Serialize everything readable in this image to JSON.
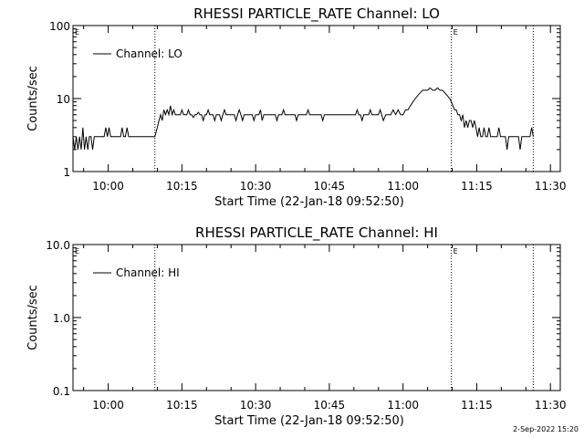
{
  "footer": {
    "date_stamp": "2-Sep-2022 15:20"
  },
  "chart_data": [
    {
      "type": "line",
      "title": "RHESSI PARTICLE_RATE Channel: LO",
      "xlabel": "Start Time (22-Jan-18 09:52:50)",
      "ylabel": "Counts/sec",
      "yscale": "log",
      "xlim": [
        "09:52:50",
        "11:32:00"
      ],
      "ylim": [
        1,
        100
      ],
      "x_ticks": [
        "10:00",
        "10:15",
        "10:30",
        "10:45",
        "11:00",
        "11:15",
        "11:30"
      ],
      "y_ticks": [
        "1",
        "10",
        "100"
      ],
      "legend": {
        "entries": [
          "Channel: LO"
        ],
        "placement": "top-left"
      },
      "event_lines": [
        "10:09:30",
        "11:09:50",
        "11:26:30"
      ],
      "event_markers": [
        {
          "at": "09:52:50",
          "label": "E"
        },
        {
          "at": "11:09:50",
          "label": "E"
        }
      ],
      "series": [
        {
          "name": "Channel: LO",
          "x": [
            "09:52:50",
            "09:53:10",
            "09:53:30",
            "09:53:50",
            "09:54:10",
            "09:54:30",
            "09:54:50",
            "09:55:10",
            "09:55:30",
            "09:55:50",
            "09:56:10",
            "09:56:30",
            "09:56:50",
            "09:57:10",
            "09:57:30",
            "09:57:50",
            "09:58:10",
            "09:58:30",
            "09:58:50",
            "09:59:10",
            "09:59:30",
            "09:59:50",
            "10:00:10",
            "10:00:30",
            "10:00:50",
            "10:01:10",
            "10:01:30",
            "10:01:50",
            "10:02:10",
            "10:02:30",
            "10:02:50",
            "10:03:10",
            "10:03:30",
            "10:03:50",
            "10:04:10",
            "10:05:00",
            "10:06:00",
            "10:07:00",
            "10:08:00",
            "10:09:30",
            "10:10:00",
            "10:10:20",
            "10:10:40",
            "10:11:00",
            "10:11:20",
            "10:11:40",
            "10:12:00",
            "10:12:20",
            "10:12:40",
            "10:13:00",
            "10:13:20",
            "10:13:40",
            "10:14:00",
            "10:14:20",
            "10:14:40",
            "10:15:00",
            "10:15:20",
            "10:15:40",
            "10:16:00",
            "10:16:20",
            "10:16:40",
            "10:17:00",
            "10:17:20",
            "10:17:40",
            "10:18:00",
            "10:18:20",
            "10:18:40",
            "10:19:00",
            "10:19:20",
            "10:19:40",
            "10:20:00",
            "10:20:20",
            "10:20:40",
            "10:21:00",
            "10:21:20",
            "10:21:40",
            "10:22:00",
            "10:22:20",
            "10:22:40",
            "10:23:00",
            "10:23:20",
            "10:23:40",
            "10:24:00",
            "10:24:20",
            "10:24:40",
            "10:25:00",
            "10:25:20",
            "10:25:40",
            "10:26:00",
            "10:26:20",
            "10:26:40",
            "10:27:00",
            "10:27:20",
            "10:27:40",
            "10:28:00",
            "10:28:20",
            "10:28:40",
            "10:29:00",
            "10:29:20",
            "10:29:40",
            "10:30:00",
            "10:30:20",
            "10:30:40",
            "10:31:00",
            "10:31:20",
            "10:31:40",
            "10:32:00",
            "10:32:20",
            "10:32:40",
            "10:33:00",
            "10:33:20",
            "10:33:40",
            "10:34:00",
            "10:34:20",
            "10:34:40",
            "10:35:00",
            "10:35:20",
            "10:35:40",
            "10:36:00",
            "10:36:20",
            "10:36:40",
            "10:37:00",
            "10:37:20",
            "10:37:40",
            "10:38:00",
            "10:38:20",
            "10:38:40",
            "10:39:00",
            "10:39:20",
            "10:39:40",
            "10:40:00",
            "10:40:20",
            "10:40:40",
            "10:41:00",
            "10:41:20",
            "10:41:40",
            "10:42:00",
            "10:42:20",
            "10:42:40",
            "10:43:00",
            "10:43:20",
            "10:43:40",
            "10:44:00",
            "10:44:20",
            "10:44:40",
            "10:45:00",
            "10:45:20",
            "10:45:40",
            "10:46:00",
            "10:46:20",
            "10:46:40",
            "10:47:00",
            "10:47:20",
            "10:47:40",
            "10:48:00",
            "10:48:20",
            "10:48:40",
            "10:49:00",
            "10:49:20",
            "10:49:40",
            "10:50:00",
            "10:50:20",
            "10:50:40",
            "10:51:00",
            "10:51:20",
            "10:51:40",
            "10:52:00",
            "10:52:20",
            "10:52:40",
            "10:53:00",
            "10:53:20",
            "10:53:40",
            "10:54:00",
            "10:54:20",
            "10:54:40",
            "10:55:00",
            "10:55:20",
            "10:55:40",
            "10:56:00",
            "10:56:30",
            "10:57:00",
            "10:57:30",
            "10:58:00",
            "10:58:30",
            "10:59:00",
            "10:59:30",
            "11:00:00",
            "11:00:30",
            "11:01:00",
            "11:01:30",
            "11:02:00",
            "11:02:30",
            "11:03:00",
            "11:03:30",
            "11:04:00",
            "11:04:30",
            "11:05:00",
            "11:05:30",
            "11:06:00",
            "11:06:30",
            "11:07:00",
            "11:07:30",
            "11:08:00",
            "11:08:30",
            "11:09:00",
            "11:09:30",
            "11:09:50",
            "11:10:10",
            "11:10:30",
            "11:10:50",
            "11:11:10",
            "11:11:30",
            "11:11:50",
            "11:12:10",
            "11:12:30",
            "11:12:50",
            "11:13:10",
            "11:13:30",
            "11:13:50",
            "11:14:10",
            "11:14:30",
            "11:14:50",
            "11:15:10",
            "11:15:30",
            "11:15:50",
            "11:16:10",
            "11:16:30",
            "11:16:50",
            "11:17:10",
            "11:17:30",
            "11:17:50",
            "11:18:10",
            "11:18:30",
            "11:18:50",
            "11:19:10",
            "11:19:30",
            "11:19:50",
            "11:20:10",
            "11:20:30",
            "11:20:50",
            "11:21:10",
            "11:21:30",
            "11:21:50",
            "11:22:10",
            "11:22:30",
            "11:22:50",
            "11:23:10",
            "11:23:30",
            "11:23:50",
            "11:24:10",
            "11:24:30",
            "11:24:50",
            "11:25:10",
            "11:25:30",
            "11:25:50",
            "11:26:10",
            "11:26:30"
          ],
          "values": [
            3.0,
            2.0,
            3.0,
            2.0,
            3.0,
            2.0,
            4.0,
            2.0,
            3.0,
            2.0,
            3.0,
            3.0,
            2.0,
            3.0,
            3.0,
            3.0,
            3.0,
            3.0,
            3.0,
            3.0,
            4.0,
            3.0,
            4.0,
            3.0,
            3.0,
            3.0,
            3.0,
            3.0,
            3.0,
            3.0,
            4.0,
            3.0,
            3.0,
            4.0,
            3.0,
            3.0,
            3.0,
            3.0,
            3.0,
            3.0,
            4.0,
            5.0,
            6.0,
            5.0,
            7.0,
            6.0,
            7.0,
            6.0,
            8.0,
            6.0,
            7.0,
            6.0,
            6.0,
            6.0,
            6.0,
            7.0,
            6.0,
            6.0,
            6.0,
            7.0,
            6.0,
            6.0,
            5.5,
            6.0,
            6.0,
            6.5,
            6.0,
            6.0,
            5.0,
            6.0,
            6.0,
            7.0,
            6.0,
            6.0,
            6.0,
            5.0,
            6.0,
            6.0,
            6.0,
            5.0,
            6.0,
            7.0,
            6.0,
            6.0,
            6.0,
            6.0,
            6.0,
            6.0,
            5.0,
            6.0,
            7.0,
            6.0,
            5.0,
            6.0,
            6.0,
            6.0,
            6.0,
            6.0,
            6.0,
            5.0,
            6.0,
            6.0,
            6.0,
            7.0,
            5.0,
            6.0,
            6.0,
            6.0,
            6.0,
            6.0,
            6.0,
            6.0,
            6.0,
            5.0,
            6.0,
            6.0,
            6.0,
            7.0,
            6.0,
            6.0,
            6.0,
            6.0,
            6.0,
            6.0,
            6.0,
            5.0,
            6.0,
            6.0,
            6.0,
            6.0,
            6.0,
            6.0,
            7.0,
            6.0,
            6.0,
            6.0,
            6.0,
            6.0,
            6.0,
            6.0,
            6.0,
            5.0,
            6.0,
            6.0,
            6.0,
            6.0,
            6.0,
            6.0,
            6.0,
            6.0,
            6.0,
            6.0,
            6.0,
            6.0,
            6.0,
            6.0,
            6.0,
            6.0,
            6.0,
            6.0,
            6.0,
            6.0,
            7.0,
            6.0,
            6.0,
            5.0,
            6.0,
            6.0,
            6.0,
            6.0,
            7.0,
            6.0,
            6.0,
            6.0,
            6.0,
            6.0,
            7.0,
            6.0,
            5.0,
            6.0,
            6.0,
            6.0,
            7.0,
            6.0,
            7.0,
            6.0,
            6.0,
            7.0,
            7.0,
            8.0,
            9.0,
            10.0,
            11.0,
            12.0,
            13.0,
            13.0,
            13.0,
            14.0,
            13.0,
            13.0,
            14.0,
            13.0,
            13.0,
            12.0,
            11.0,
            10.0,
            9.0,
            8.0,
            7.0,
            7.0,
            6.0,
            6.0,
            5.0,
            6.0,
            4.0,
            5.0,
            4.0,
            5.0,
            5.0,
            4.0,
            5.0,
            4.0,
            3.0,
            4.0,
            3.0,
            3.0,
            4.0,
            3.0,
            3.0,
            4.0,
            3.0,
            3.0,
            3.0,
            3.0,
            3.0,
            4.0,
            3.0,
            3.0,
            3.0,
            3.0,
            2.0,
            3.0,
            3.0,
            3.0,
            3.0,
            3.0,
            3.0,
            3.0,
            2.0,
            3.0,
            3.0,
            3.0,
            3.0,
            3.0,
            3.0,
            4.0,
            3.0
          ]
        }
      ]
    },
    {
      "type": "line",
      "title": "RHESSI PARTICLE_RATE Channel: HI",
      "xlabel": "Start Time (22-Jan-18 09:52:50)",
      "ylabel": "Counts/sec",
      "yscale": "log",
      "xlim": [
        "09:52:50",
        "11:32:00"
      ],
      "ylim": [
        0.1,
        10
      ],
      "x_ticks": [
        "10:00",
        "10:15",
        "10:30",
        "10:45",
        "11:00",
        "11:15",
        "11:30"
      ],
      "y_ticks": [
        "0.1",
        "1.0",
        "10.0"
      ],
      "legend": {
        "entries": [
          "Channel: HI"
        ],
        "placement": "top-left"
      },
      "event_lines": [
        "10:09:30",
        "11:09:50",
        "11:26:30"
      ],
      "event_markers": [
        {
          "at": "09:52:50",
          "label": "E"
        },
        {
          "at": "11:09:50",
          "label": "E"
        }
      ],
      "series": [
        {
          "name": "Channel: HI",
          "x": [],
          "values": []
        }
      ]
    }
  ]
}
